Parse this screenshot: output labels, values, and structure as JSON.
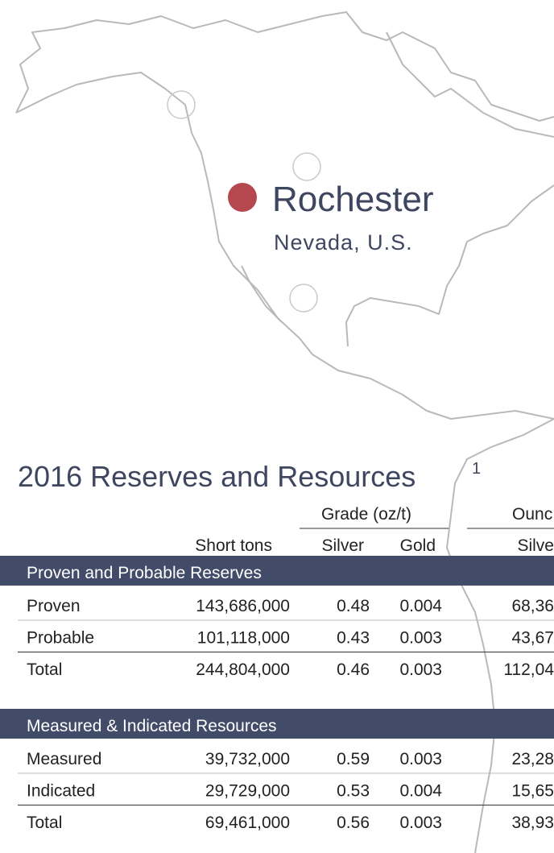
{
  "location": {
    "name": "Rochester",
    "region": "Nevada, U.S."
  },
  "title": "2016 Reserves and Resources",
  "title_note": "1",
  "table": {
    "group_headers": [
      "Grade (oz/t)",
      "Ounc"
    ],
    "columns": [
      "Short tons",
      "Silver",
      "Gold",
      "Silve"
    ],
    "sections": [
      {
        "heading": "Proven and Probable Reserves",
        "rows": [
          [
            "Proven",
            "143,686,000",
            "0.48",
            "0.004",
            "68,36"
          ],
          [
            "Probable",
            "101,118,000",
            "0.43",
            "0.003",
            "43,67"
          ],
          [
            "Total",
            "244,804,000",
            "0.46",
            "0.003",
            "112,04"
          ]
        ]
      },
      {
        "heading": "Measured & Indicated Resources",
        "rows": [
          [
            "Measured",
            "39,732,000",
            "0.59",
            "0.003",
            "23,28"
          ],
          [
            "Indicated",
            "29,729,000",
            "0.53",
            "0.004",
            "15,65"
          ],
          [
            "Total",
            "69,461,000",
            "0.56",
            "0.003",
            "38,93"
          ]
        ]
      }
    ]
  }
}
